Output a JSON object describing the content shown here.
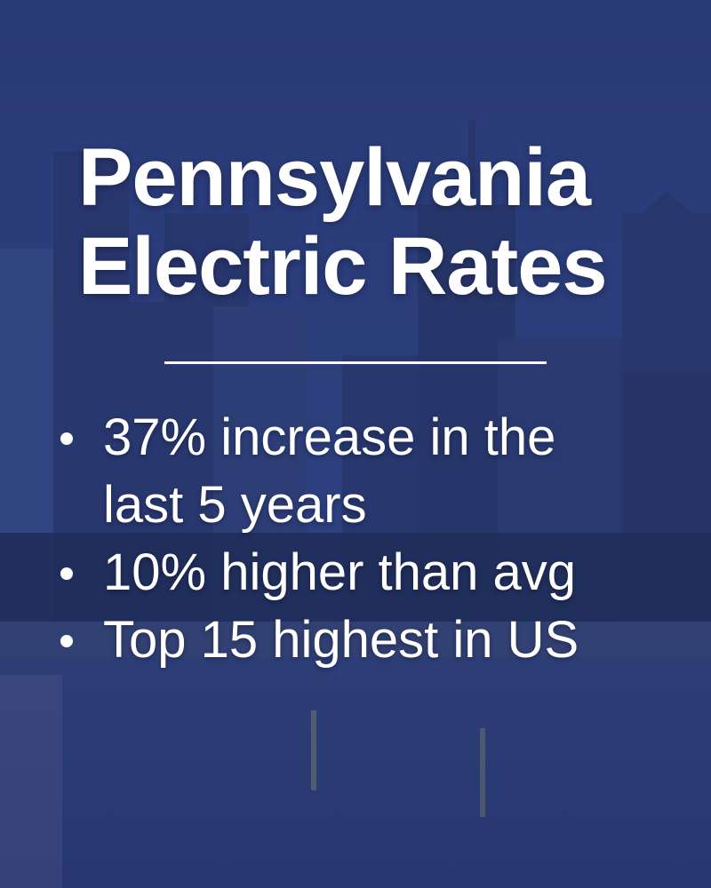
{
  "title": [
    "Pennsylvania",
    "Electric Rates"
  ],
  "bullets": [
    "37% increase in the last 5 years",
    "10% higher than avg",
    "Top 15 highest in US"
  ]
}
